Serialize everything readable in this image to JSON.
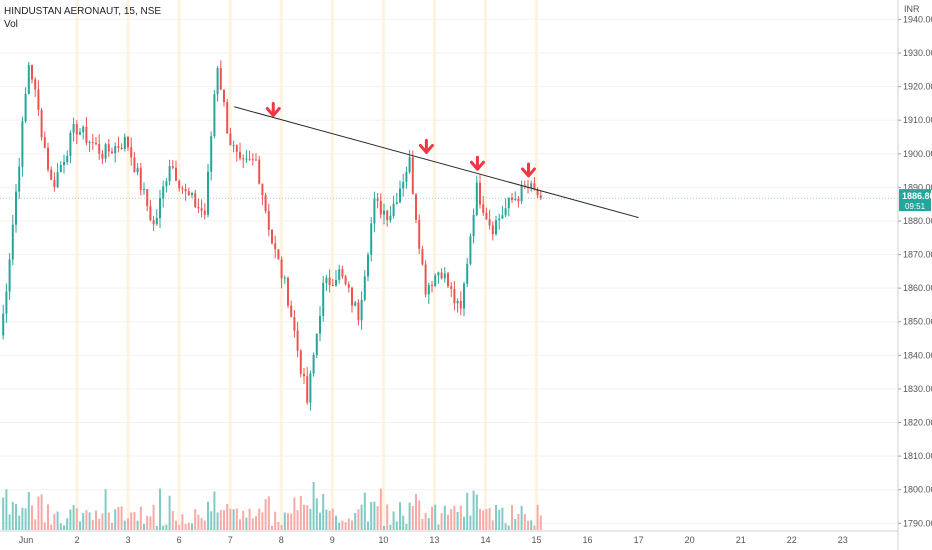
{
  "header": {
    "title": "HINDUSTAN AERONAUT, 15, NSE",
    "volume_label": "Vol"
  },
  "price_tag": {
    "value": "1886.80",
    "countdown": "09:51",
    "color": "#26a69a"
  },
  "colors": {
    "up": "#26a69a",
    "down": "#ef5350",
    "up_volume": "#80cbc4",
    "down_volume": "#f7a9a7",
    "session_band": "#fff3e0",
    "trendline": "#2a2a2a",
    "arrows": "#f23645"
  },
  "chart_data": {
    "type": "candlestick",
    "y_axis": {
      "unit": "INR",
      "range": [
        1788,
        1944
      ],
      "ticks": [
        1790,
        1800,
        1810,
        1820,
        1830,
        1840,
        1850,
        1860,
        1870,
        1880,
        1890,
        1900,
        1910,
        1920,
        1930,
        1940
      ]
    },
    "x_axis": {
      "labels": [
        "Jun",
        "2",
        "3",
        "6",
        "7",
        "8",
        "9",
        "10",
        "13",
        "14",
        "15",
        "16",
        "17",
        "20",
        "21",
        "22",
        "23"
      ]
    },
    "session_starts": [
      "2",
      "3",
      "6",
      "7",
      "8",
      "9",
      "10",
      "13",
      "14",
      "15"
    ],
    "anchors": [
      {
        "t": "Jun",
        "p": 1846
      },
      {
        "t": "Jun",
        "p": 1872
      },
      {
        "t": "Jun",
        "p": 1900
      },
      {
        "t": "Jun",
        "p": 1928
      },
      {
        "t": "Jun",
        "p": 1912
      },
      {
        "t": "2",
        "p": 1890
      },
      {
        "t": "2",
        "p": 1908
      },
      {
        "t": "3",
        "p": 1900
      },
      {
        "t": "3",
        "p": 1904
      },
      {
        "t": "6",
        "p": 1878
      },
      {
        "t": "6",
        "p": 1898
      },
      {
        "t": "6",
        "p": 1888
      },
      {
        "t": "7",
        "p": 1882
      },
      {
        "t": "7",
        "p": 1928
      },
      {
        "t": "7",
        "p": 1905
      },
      {
        "t": "7",
        "p": 1896
      },
      {
        "t": "8",
        "p": 1898
      },
      {
        "t": "8",
        "p": 1874
      },
      {
        "t": "8",
        "p": 1858
      },
      {
        "t": "9",
        "p": 1826
      },
      {
        "t": "9",
        "p": 1860
      },
      {
        "t": "9",
        "p": 1865
      },
      {
        "t": "10",
        "p": 1852
      },
      {
        "t": "10",
        "p": 1885
      },
      {
        "t": "10",
        "p": 1882
      },
      {
        "t": "13",
        "p": 1898
      },
      {
        "t": "13",
        "p": 1860
      },
      {
        "t": "13",
        "p": 1866
      },
      {
        "t": "14",
        "p": 1852
      },
      {
        "t": "14",
        "p": 1890
      },
      {
        "t": "14",
        "p": 1878
      },
      {
        "t": "15",
        "p": 1886
      },
      {
        "t": "15",
        "p": 1890
      },
      {
        "t": "15",
        "p": 1886.8
      }
    ],
    "trendline": {
      "start": {
        "t": "7",
        "p": 1914
      },
      "end": {
        "t": "17",
        "p": 1881
      }
    },
    "arrows": [
      {
        "t": "8",
        "p": 1912
      },
      {
        "t": "13",
        "p": 1901
      },
      {
        "t": "14",
        "p": 1896
      },
      {
        "t": "15",
        "p": 1894
      }
    ]
  }
}
